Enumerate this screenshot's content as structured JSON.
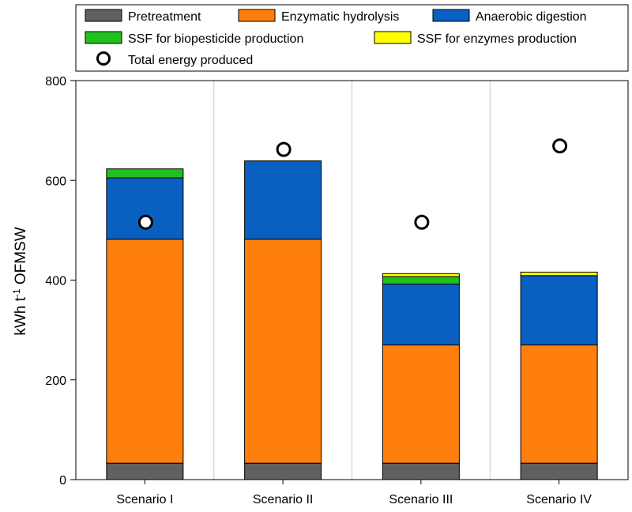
{
  "chart_data": {
    "type": "bar",
    "stacked": true,
    "title": "",
    "xlabel": "",
    "ylabel": "kWh t-1 OFMSW",
    "ylabel_parts": {
      "pre": "kWh  t",
      "sup": "-1",
      "post": " OFMSW"
    },
    "ylim": [
      0,
      800
    ],
    "yticks": [
      0,
      200,
      400,
      600,
      800
    ],
    "categories": [
      "Scenario I",
      "Scenario II",
      "Scenario III",
      "Scenario IV"
    ],
    "series": [
      {
        "name": "Pretreatment",
        "color": "#606060",
        "values": [
          33,
          33,
          33,
          33
        ]
      },
      {
        "name": "Enzymatic hydrolysis",
        "color": "#ff7f0e",
        "values": [
          449,
          449,
          237,
          237
        ]
      },
      {
        "name": "Anaerobic digestion",
        "color": "#0a60c0",
        "values": [
          123,
          157,
          122,
          139
        ]
      },
      {
        "name": "SSF for biopesticide production",
        "color": "#1fc01f",
        "values": [
          18,
          0,
          15,
          0
        ]
      },
      {
        "name": "SSF for enzymes production",
        "color": "#ffff00",
        "values": [
          0,
          0,
          6,
          7
        ]
      }
    ],
    "markers": {
      "name": "Total energy produced",
      "symbol": "open-circle",
      "values": [
        516,
        662,
        516,
        669
      ]
    },
    "legend_position": "top",
    "vertical_gridlines": true
  }
}
